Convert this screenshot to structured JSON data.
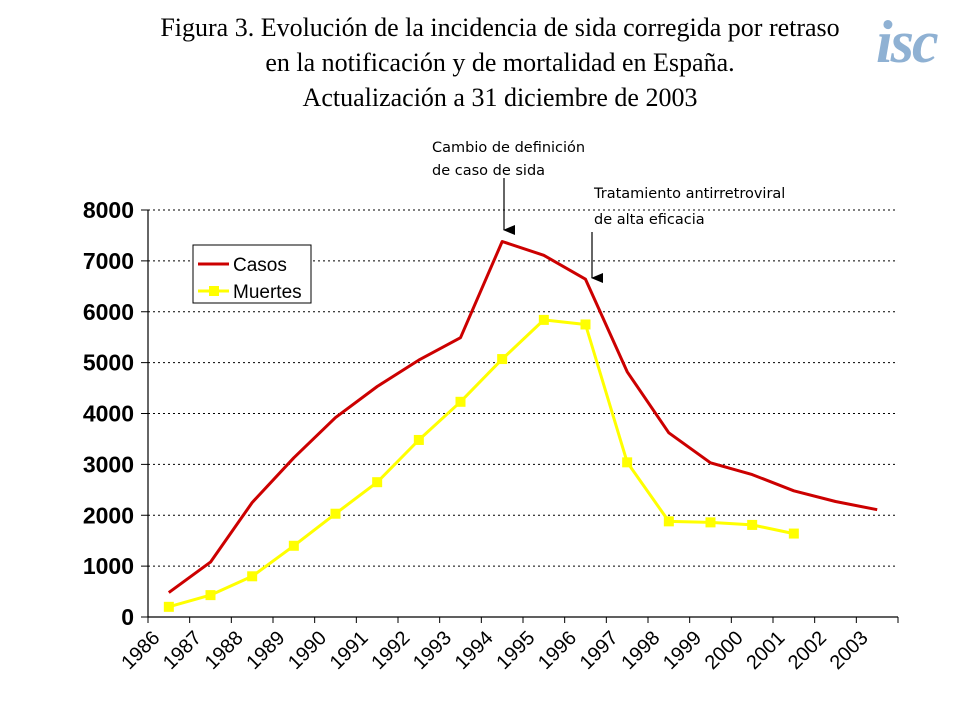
{
  "title_lines": [
    "Figura 3. Evolución de la incidencia de sida corregida por retraso",
    "en la notificación y de mortalidad en España.",
    "Actualización a 31 diciembre de 2003"
  ],
  "logo_text": "isc",
  "chart_data": {
    "type": "line",
    "categories": [
      "1986",
      "1987",
      "1988",
      "1989",
      "1990",
      "1991",
      "1992",
      "1993",
      "1994",
      "1995",
      "1996",
      "1997",
      "1998",
      "1999",
      "2000",
      "2001",
      "2002",
      "2003"
    ],
    "ylim": [
      0,
      8000
    ],
    "yticks": [
      0,
      1000,
      2000,
      3000,
      4000,
      5000,
      6000,
      7000,
      8000
    ],
    "grid": "horizontal dotted",
    "legend_placement": "top-left",
    "series": [
      {
        "name": "Casos",
        "color": "#cc0000",
        "marker": "none",
        "values": [
          480,
          1080,
          2250,
          3130,
          3920,
          4530,
          5050,
          5490,
          7380,
          7110,
          6640,
          4820,
          3620,
          3030,
          2800,
          2480,
          2270,
          2110
        ]
      },
      {
        "name": "Muertes",
        "color": "#ffff00",
        "marker": "square",
        "values": [
          200,
          430,
          800,
          1400,
          2030,
          2650,
          3480,
          4230,
          5070,
          5840,
          5750,
          3040,
          1880,
          1860,
          1810,
          1640,
          null,
          null
        ]
      }
    ],
    "annotations": [
      {
        "lines": [
          "Cambio de definición",
          "de caso de sida"
        ],
        "x_index": 8
      },
      {
        "lines": [
          "Tratamiento antirretroviral",
          "de alta eficacia"
        ],
        "x_index": 10.8
      }
    ]
  }
}
